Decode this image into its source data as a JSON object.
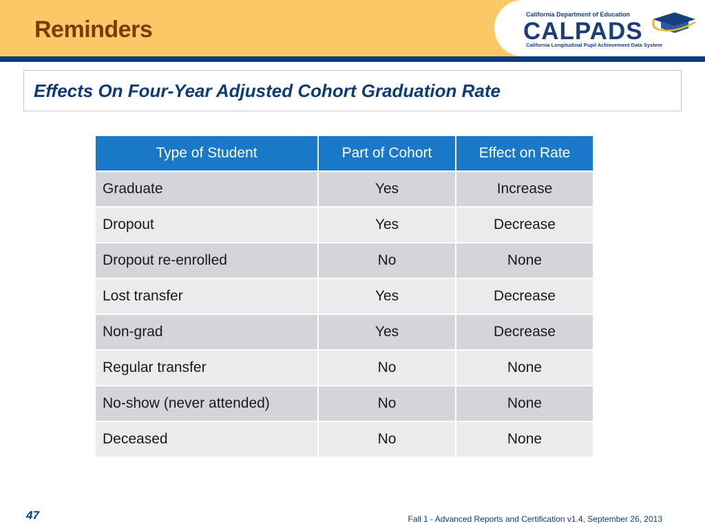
{
  "header": {
    "title": "Reminders",
    "logo": {
      "department": "California Department of Education",
      "name": "CALPADS",
      "subtitle": "California Longitudinal Pupil Achievement Data System"
    }
  },
  "subtitle": "Effects On Four-Year Adjusted Cohort Graduation Rate",
  "table": {
    "headers": [
      "Type of Student",
      "Part of Cohort",
      "Effect on Rate"
    ],
    "rows": [
      [
        "Graduate",
        "Yes",
        "Increase"
      ],
      [
        "Dropout",
        "Yes",
        "Decrease"
      ],
      [
        "Dropout re-enrolled",
        "No",
        "None"
      ],
      [
        "Lost transfer",
        "Yes",
        "Decrease"
      ],
      [
        "Non-grad",
        "Yes",
        "Decrease"
      ],
      [
        "Regular transfer",
        "No",
        "None"
      ],
      [
        "No-show (never attended)",
        "No",
        "None"
      ],
      [
        "Deceased",
        "No",
        "None"
      ]
    ]
  },
  "footer": {
    "slide_number": "47",
    "text": "Fall 1 - Advanced Reports and Certification v1.4, September 26, 2013"
  },
  "colors": {
    "header_band": "#fcc867",
    "header_title": "#7a3b0a",
    "rule": "#0d3a78",
    "table_header": "#1978c8",
    "row_dark": "#d4d5d9",
    "row_light": "#ebebee"
  }
}
